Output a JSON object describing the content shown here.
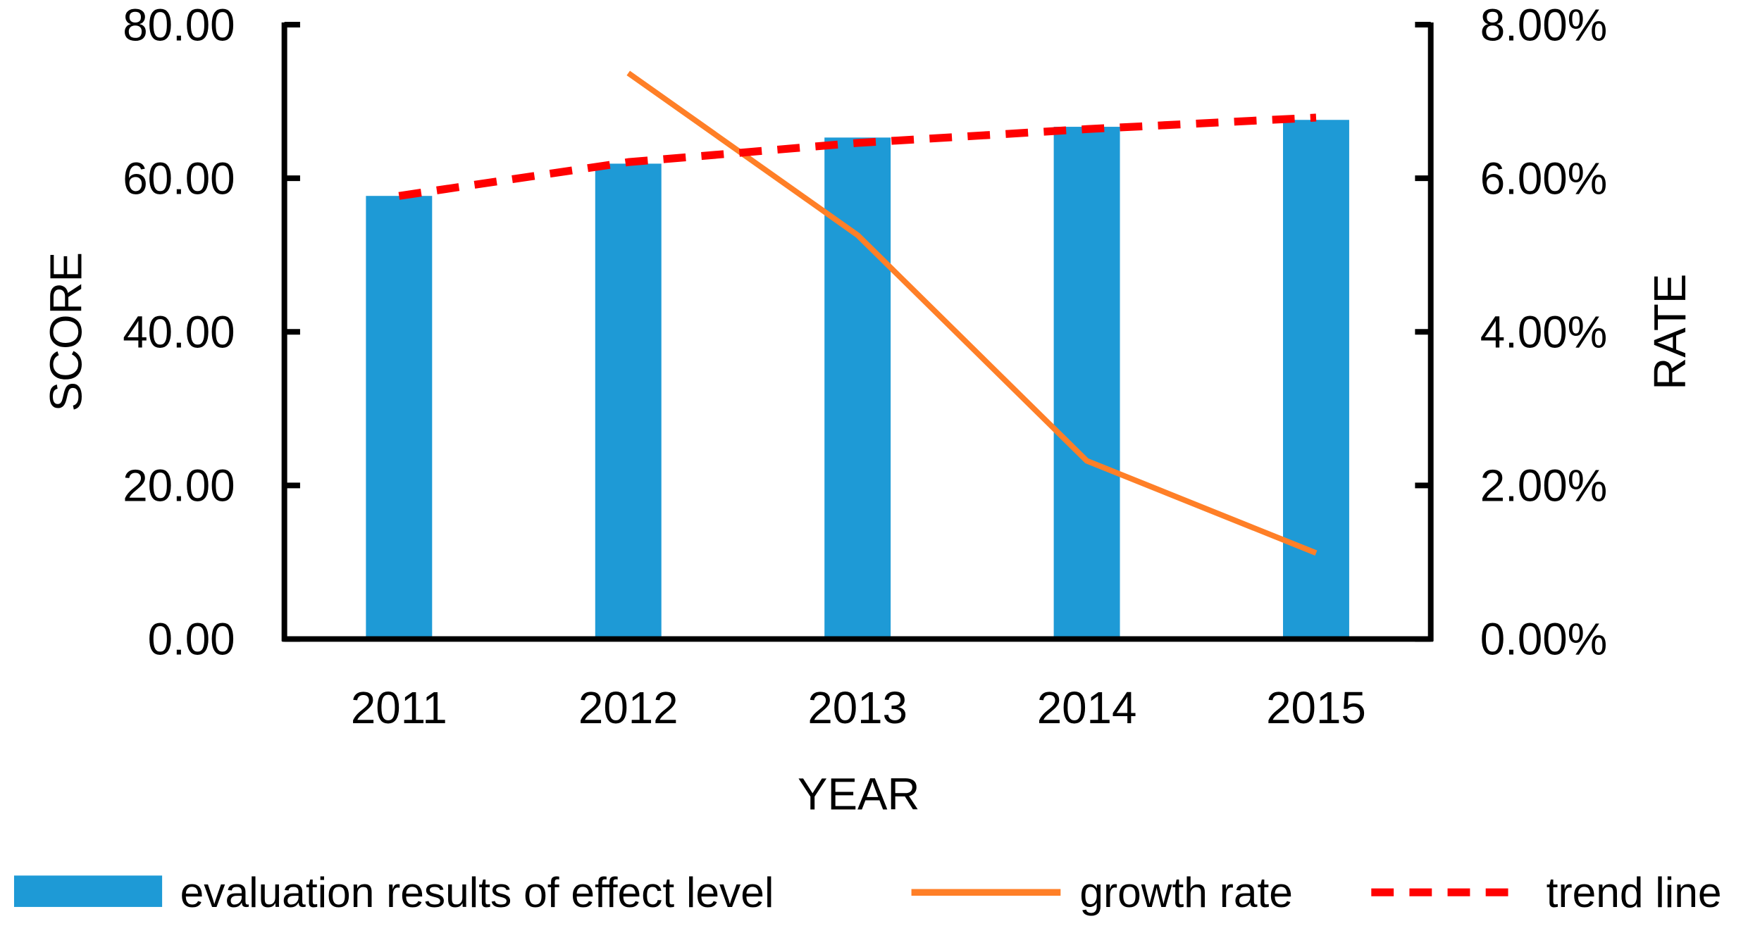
{
  "chart_data": {
    "type": "bar+line",
    "categories": [
      "2011",
      "2012",
      "2013",
      "2014",
      "2015"
    ],
    "xlabel": "YEAR",
    "ylabel": "SCORE",
    "y2label": "RATE",
    "ylim": [
      0,
      80
    ],
    "y2lim": [
      0,
      0.08
    ],
    "yticks": [
      "0.00",
      "20.00",
      "40.00",
      "60.00",
      "80.00"
    ],
    "y2ticks": [
      "0.00%",
      "2.00%",
      "4.00%",
      "6.00%",
      "8.00%"
    ],
    "grid": false,
    "legend_position": "bottom",
    "series": [
      {
        "name": "evaluation results of effect level",
        "kind": "bar",
        "axis": "left",
        "color": "#1E9AD6",
        "values": [
          57.7,
          61.9,
          65.3,
          66.7,
          67.6
        ]
      },
      {
        "name": "growth rate",
        "kind": "line",
        "axis": "right",
        "color": "#FF7F27",
        "values": [
          null,
          0.0737,
          0.0526,
          0.0232,
          0.0112
        ]
      },
      {
        "name": "trend line",
        "kind": "dashed-line",
        "axis": "left",
        "color": "#FF0000",
        "values": [
          57.7,
          62.1,
          64.6,
          66.4,
          67.9
        ]
      }
    ]
  }
}
